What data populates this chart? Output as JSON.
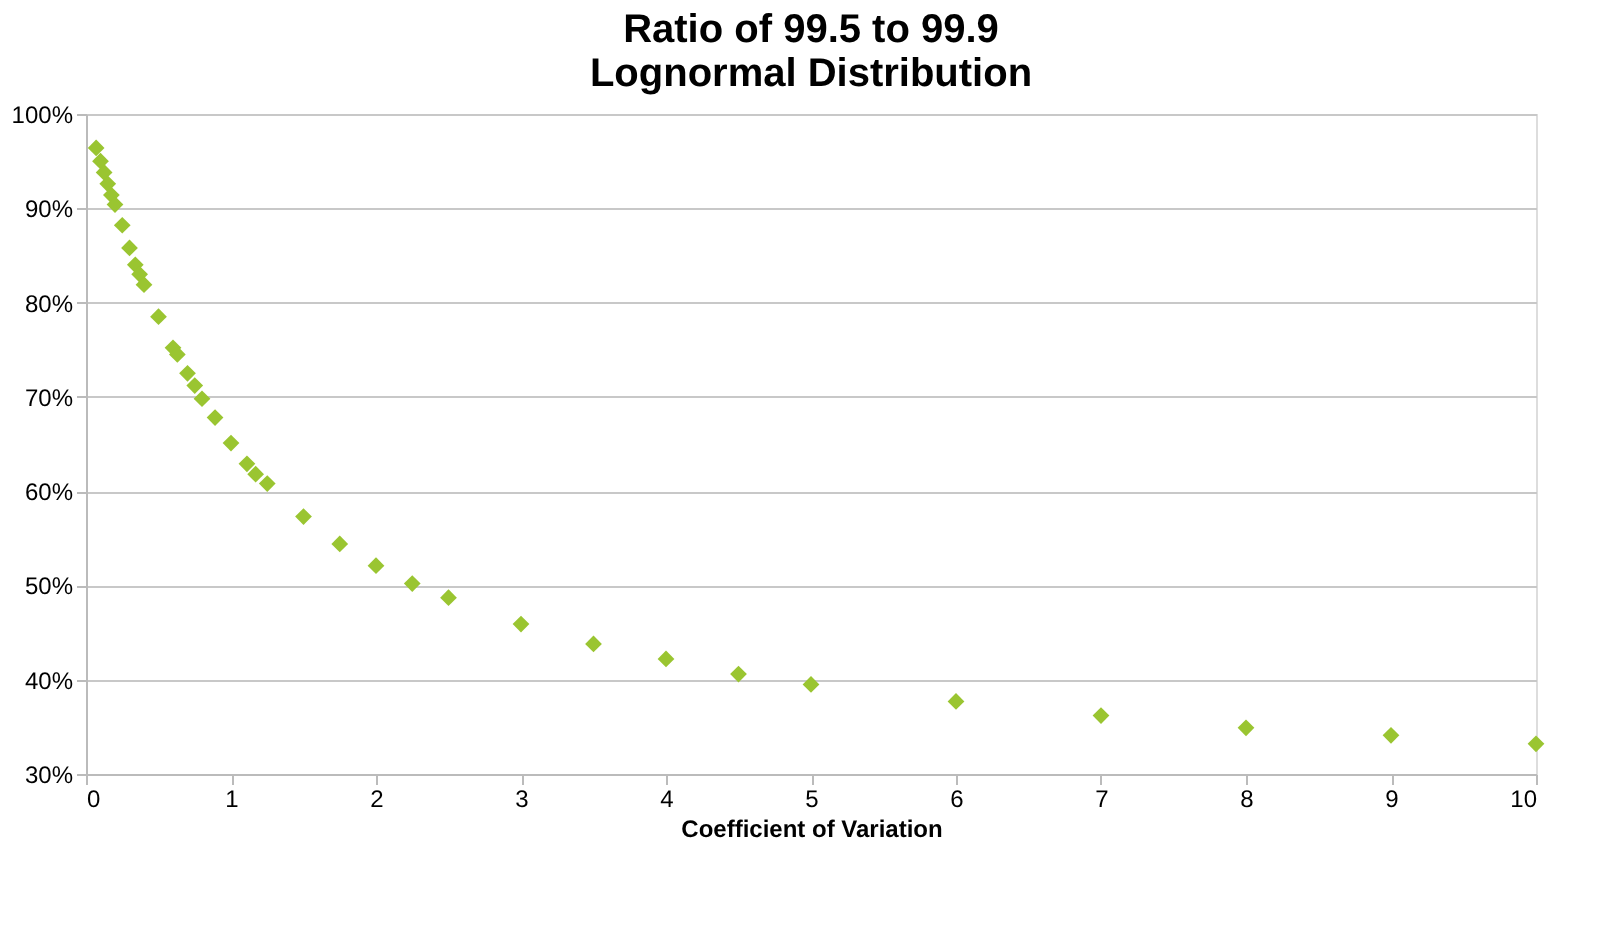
{
  "chart_data": {
    "type": "scatter",
    "title": "Ratio of 99.5 to 99.9\nLognormal Distribution",
    "xlabel": "Coefficient of Variation",
    "x": [
      0.07,
      0.1,
      0.125,
      0.15,
      0.175,
      0.2,
      0.25,
      0.3,
      0.34,
      0.37,
      0.4,
      0.5,
      0.6,
      0.63,
      0.7,
      0.75,
      0.8,
      0.89,
      1.0,
      1.11,
      1.17,
      1.25,
      1.5,
      1.75,
      2.0,
      2.25,
      2.5,
      3,
      3.5,
      4,
      4.5,
      5,
      6,
      7,
      8,
      9,
      10
    ],
    "series": [
      {
        "color": "#9ac531",
        "values": [
          96.4,
          95.0,
          93.8,
          92.6,
          91.4,
          90.4,
          88.2,
          85.8,
          84.0,
          83.0,
          81.9,
          78.5,
          75.2,
          74.5,
          72.5,
          71.2,
          69.8,
          67.8,
          65.1,
          62.9,
          61.8,
          60.8,
          57.3,
          54.4,
          52.1,
          50.2,
          48.7,
          45.9,
          43.8,
          42.2,
          40.6,
          39.5,
          37.7,
          36.2,
          34.9,
          34.1,
          33.2
        ]
      }
    ],
    "marker": "diamond",
    "grid": "y",
    "legend": false,
    "xlim": [
      0,
      10
    ],
    "xticks": [
      0,
      1,
      2,
      3,
      4,
      5,
      6,
      7,
      8,
      9,
      10
    ],
    "ylim": [
      30,
      100
    ],
    "yticks": [
      {
        "value": 30,
        "label": "30%"
      },
      {
        "value": 40,
        "label": "40%"
      },
      {
        "value": 50,
        "label": "50%"
      },
      {
        "value": 60,
        "label": "60%"
      },
      {
        "value": 70,
        "label": "70%"
      },
      {
        "value": 80,
        "label": "80%"
      },
      {
        "value": 90,
        "label": "90%"
      },
      {
        "value": 100,
        "label": "100%"
      }
    ]
  }
}
